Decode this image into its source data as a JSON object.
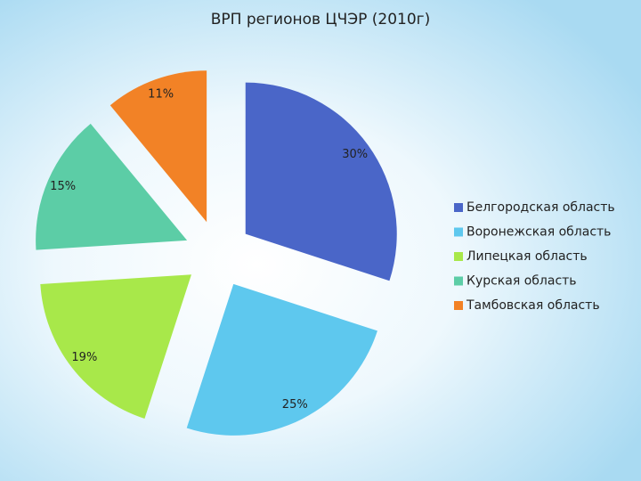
{
  "chart_data": {
    "type": "pie",
    "title": "ВРП регионов ЦЧЭР (2010г)",
    "categories": [
      "Белгородская область",
      "Воронежская область",
      "Липецкая область",
      "Курская область",
      "Тамбовская область"
    ],
    "values": [
      30,
      25,
      19,
      15,
      11
    ],
    "value_labels": [
      "30%",
      "25%",
      "19%",
      "15%",
      "11%"
    ],
    "colors": [
      "#4a66c8",
      "#5ec8ee",
      "#a8e84a",
      "#5ccda6",
      "#f28226"
    ],
    "legend": "right"
  }
}
